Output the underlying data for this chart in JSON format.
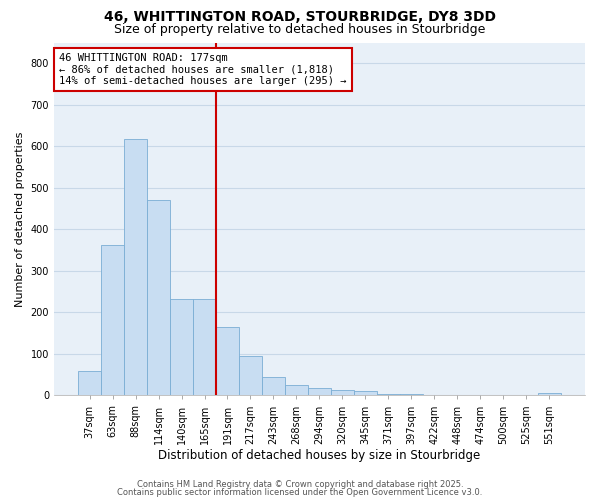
{
  "title1": "46, WHITTINGTON ROAD, STOURBRIDGE, DY8 3DD",
  "title2": "Size of property relative to detached houses in Stourbridge",
  "xlabel": "Distribution of detached houses by size in Stourbridge",
  "ylabel": "Number of detached properties",
  "categories": [
    "37sqm",
    "63sqm",
    "88sqm",
    "114sqm",
    "140sqm",
    "165sqm",
    "191sqm",
    "217sqm",
    "243sqm",
    "268sqm",
    "294sqm",
    "320sqm",
    "345sqm",
    "371sqm",
    "397sqm",
    "422sqm",
    "448sqm",
    "474sqm",
    "500sqm",
    "525sqm",
    "551sqm"
  ],
  "values": [
    60,
    362,
    617,
    470,
    232,
    232,
    165,
    95,
    45,
    25,
    18,
    13,
    10,
    4,
    3,
    2,
    1,
    1,
    0,
    0,
    5
  ],
  "bar_color": "#c8ddf2",
  "bar_edge_color": "#7aadd4",
  "vline_color": "#cc0000",
  "annotation_text": "46 WHITTINGTON ROAD: 177sqm\n← 86% of detached houses are smaller (1,818)\n14% of semi-detached houses are larger (295) →",
  "annotation_box_color": "#ffffff",
  "annotation_box_edge": "#cc0000",
  "ylim": [
    0,
    850
  ],
  "yticks": [
    0,
    100,
    200,
    300,
    400,
    500,
    600,
    700,
    800
  ],
  "background_color": "#ffffff",
  "plot_bg_color": "#e8f0f8",
  "grid_color": "#c8d8e8",
  "footer1": "Contains HM Land Registry data © Crown copyright and database right 2025.",
  "footer2": "Contains public sector information licensed under the Open Government Licence v3.0.",
  "title_fontsize": 10,
  "subtitle_fontsize": 9,
  "tick_fontsize": 7,
  "ylabel_fontsize": 8,
  "xlabel_fontsize": 8.5,
  "annot_fontsize": 7.5,
  "footer_fontsize": 6
}
